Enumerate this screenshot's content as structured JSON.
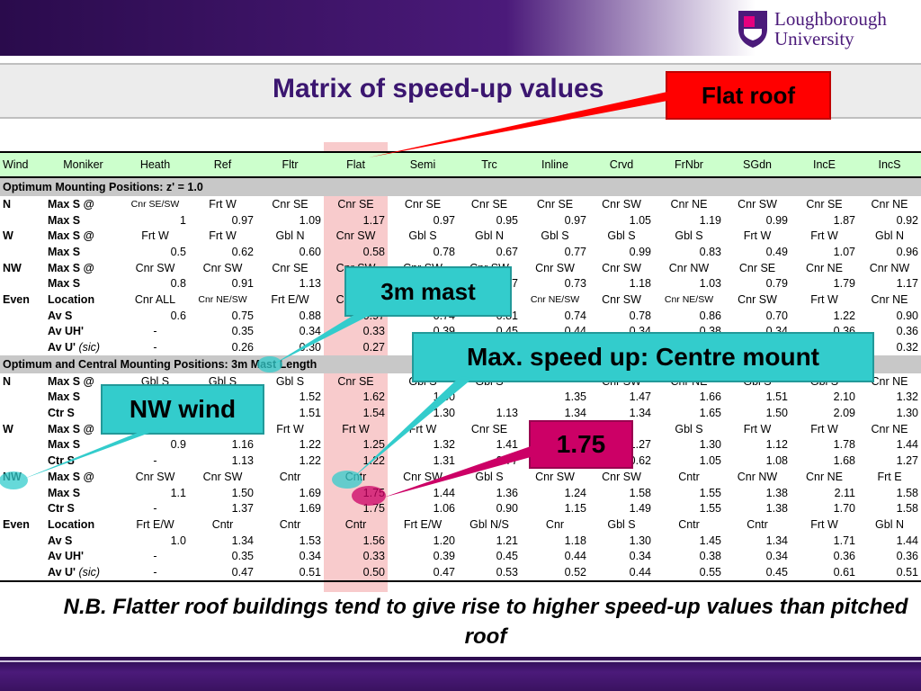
{
  "logo": {
    "line1": "Loughborough",
    "line2": "University"
  },
  "title": "Matrix of speed-up values",
  "labels": {
    "flat_roof": "Flat roof",
    "mast": "3m mast",
    "max_speed": "Max. speed up: Centre mount",
    "nw_wind": "NW wind",
    "value": "1.75"
  },
  "colors": {
    "title": "#3b1670",
    "header_bg": "#ccffcc",
    "flat_highlight": "#f3a0a2",
    "callout_red": "#ff0000",
    "callout_cyan": "#33cccc",
    "callout_magenta": "#cc0066"
  },
  "table": {
    "columns": [
      "Wind",
      "Moniker",
      "Heath",
      "Ref",
      "Fltr",
      "Flat",
      "Semi",
      "Trc",
      "Inline",
      "Crvd",
      "FrNbr",
      "SGdn",
      "IncE",
      "IncS"
    ],
    "section1": "Optimum Mounting Positions: z' = 1.0",
    "rows1": [
      [
        "N",
        "Max S @",
        "Cnr SE/SW",
        "Frt W",
        "Cnr SE",
        "Cnr SE",
        "Cnr SE",
        "Cnr SE",
        "Cnr SE",
        "Cnr SW",
        "Cnr NE",
        "Cnr SW",
        "Cnr SE",
        "Cnr NE"
      ],
      [
        "",
        "Max S",
        "1",
        "0.97",
        "1.09",
        "1.17",
        "0.97",
        "0.95",
        "0.97",
        "1.05",
        "1.19",
        "0.99",
        "1.87",
        "0.92"
      ],
      [
        "W",
        "Max S @",
        "Frt W",
        "Frt W",
        "Gbl N",
        "Cnr SW",
        "Gbl S",
        "Gbl N",
        "Gbl S",
        "Gbl S",
        "Gbl S",
        "Frt W",
        "Frt W",
        "Gbl N"
      ],
      [
        "",
        "Max S",
        "0.5",
        "0.62",
        "0.60",
        "0.58",
        "0.78",
        "0.67",
        "0.77",
        "0.99",
        "0.83",
        "0.49",
        "1.07",
        "0.96"
      ],
      [
        "NW",
        "Max S @",
        "Cnr SW",
        "Cnr SW",
        "Cnr SE",
        "Cnr SW",
        "Cnr SW",
        "Cnr SW",
        "Cnr SW",
        "Cnr SW",
        "Cnr NW",
        "Cnr SE",
        "Cnr NE",
        "Cnr NW"
      ],
      [
        "",
        "Max S",
        "0.8",
        "0.91",
        "1.13",
        "",
        "",
        "0.77",
        "0.73",
        "1.18",
        "1.03",
        "0.79",
        "1.79",
        "1.17"
      ],
      [
        "Even",
        "Location",
        "Cnr ALL",
        "Cnr NE/SW",
        "Frt E/W",
        "Cnr SW",
        "",
        "",
        "Cnr NE/SW",
        "Cnr SW",
        "Cnr NE/SW",
        "Cnr SW",
        "Frt W",
        "Cnr NE"
      ],
      [
        "",
        "Av S",
        "0.6",
        "0.75",
        "0.88",
        "0.97",
        "0.74",
        "0.81",
        "0.74",
        "0.78",
        "0.86",
        "0.70",
        "1.22",
        "0.90"
      ],
      [
        "",
        "Av UH'",
        "-",
        "0.35",
        "0.34",
        "0.33",
        "0.39",
        "0.45",
        "0.44",
        "0.34",
        "0.38",
        "0.34",
        "0.36",
        "0.36"
      ],
      [
        "",
        "Av U' (sic)",
        "-",
        "0.26",
        "0.30",
        "0.27",
        "",
        "",
        "",
        "",
        "",
        "",
        "",
        "0.32"
      ]
    ],
    "section2": "Optimum and Central Mounting Positions: 3m Mast Length",
    "rows2": [
      [
        "N",
        "Max S @",
        "Gbl S",
        "Gbl S",
        "Gbl S",
        "Cnr SE",
        "Gbl S",
        "Gbl S",
        "",
        "Cnr SW",
        "Cnr NE",
        "Gbl S",
        "Gbl S",
        "Cnr NE"
      ],
      [
        "",
        "Max S",
        "",
        "",
        "1.52",
        "1.62",
        "1.30",
        "",
        "1.35",
        "1.47",
        "1.66",
        "1.51",
        "2.10",
        "1.32"
      ],
      [
        "",
        "Ctr S",
        "",
        "",
        "1.51",
        "1.54",
        "1.30",
        "1.13",
        "1.34",
        "1.34",
        "1.65",
        "1.50",
        "2.09",
        "1.30"
      ],
      [
        "W",
        "Max S @",
        "",
        "Frt W",
        "Frt W",
        "Frt W",
        "Frt W",
        "Cnr SE",
        "",
        "",
        "Gbl S",
        "Frt W",
        "Frt W",
        "Cnr NE"
      ],
      [
        "",
        "Max S",
        "0.9",
        "1.16",
        "1.22",
        "1.25",
        "1.32",
        "1.41",
        "",
        "1.27",
        "1.30",
        "1.12",
        "1.78",
        "1.44"
      ],
      [
        "",
        "Ctr S",
        "-",
        "1.13",
        "1.22",
        "1.22",
        "1.31",
        "0.77",
        "0.77",
        "0.62",
        "1.05",
        "1.08",
        "1.68",
        "1.27"
      ],
      [
        "NW",
        "Max S @",
        "Cnr SW",
        "Cnr SW",
        "Cntr",
        "Cntr",
        "Cnr SW",
        "Gbl S",
        "Cnr SW",
        "Cnr SW",
        "Cntr",
        "Cnr NW",
        "Cnr NE",
        "Frt E"
      ],
      [
        "",
        "Max S",
        "1.1",
        "1.50",
        "1.69",
        "1.75",
        "1.44",
        "1.36",
        "1.24",
        "1.58",
        "1.55",
        "1.38",
        "2.11",
        "1.58"
      ],
      [
        "",
        "Ctr S",
        "-",
        "1.37",
        "1.69",
        "1.75",
        "1.06",
        "0.90",
        "1.15",
        "1.49",
        "1.55",
        "1.38",
        "1.70",
        "1.58"
      ],
      [
        "Even",
        "Location",
        "Frt E/W",
        "Cntr",
        "Cntr",
        "Cntr",
        "Frt E/W",
        "Gbl N/S",
        "Cnr",
        "Gbl S",
        "Cntr",
        "Cntr",
        "Frt W",
        "Gbl N"
      ],
      [
        "",
        "Av S",
        "1.0",
        "1.34",
        "1.53",
        "1.56",
        "1.20",
        "1.21",
        "1.18",
        "1.30",
        "1.45",
        "1.34",
        "1.71",
        "1.44"
      ],
      [
        "",
        "Av UH'",
        "-",
        "0.35",
        "0.34",
        "0.33",
        "0.39",
        "0.45",
        "0.44",
        "0.34",
        "0.38",
        "0.34",
        "0.36",
        "0.36"
      ],
      [
        "",
        "Av U' (sic)",
        "-",
        "0.47",
        "0.51",
        "0.50",
        "0.47",
        "0.53",
        "0.52",
        "0.44",
        "0.55",
        "0.45",
        "0.61",
        "0.51"
      ]
    ]
  },
  "note": "N.B. Flatter roof buildings tend to give rise to higher speed-up values than pitched roof"
}
